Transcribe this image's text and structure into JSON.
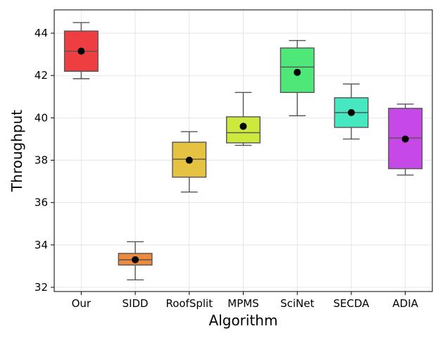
{
  "chart_data": {
    "type": "box",
    "title": "",
    "xlabel": "Algorithm",
    "ylabel": "Throughput",
    "ylim": [
      31.8,
      45.1
    ],
    "yticks": [
      32,
      34,
      36,
      38,
      40,
      42,
      44
    ],
    "grid": true,
    "categories": [
      "Our",
      "SIDD",
      "RoofSplit",
      "MPMS",
      "SciNet",
      "SECDA",
      "ADIA"
    ],
    "boxes": [
      {
        "name": "Our",
        "whisker_low": 41.85,
        "q1": 42.2,
        "median": 43.15,
        "q3": 44.1,
        "whisker_high": 44.5,
        "mean": 43.15,
        "color": "#ee3e42"
      },
      {
        "name": "SIDD",
        "whisker_low": 32.35,
        "q1": 33.05,
        "median": 33.3,
        "q3": 33.6,
        "whisker_high": 34.15,
        "mean": 33.3,
        "color": "#ec8a3e"
      },
      {
        "name": "RoofSplit",
        "whisker_low": 36.5,
        "q1": 37.2,
        "median": 38.05,
        "q3": 38.85,
        "whisker_high": 39.35,
        "mean": 38.0,
        "color": "#e5c242"
      },
      {
        "name": "MPMS",
        "whisker_low": 38.7,
        "q1": 38.82,
        "median": 39.3,
        "q3": 40.05,
        "whisker_high": 41.2,
        "mean": 39.6,
        "color": "#cde93e"
      },
      {
        "name": "SciNet",
        "whisker_low": 40.1,
        "q1": 41.2,
        "median": 42.4,
        "q3": 43.3,
        "whisker_high": 43.65,
        "mean": 42.15,
        "color": "#4de878"
      },
      {
        "name": "SECDA",
        "whisker_low": 39.0,
        "q1": 39.55,
        "median": 40.25,
        "q3": 40.95,
        "whisker_high": 41.6,
        "mean": 40.25,
        "color": "#46e8c2"
      },
      {
        "name": "ADIA",
        "whisker_low": 37.3,
        "q1": 37.6,
        "median": 39.05,
        "q3": 40.45,
        "whisker_high": 40.65,
        "mean": 39.0,
        "color": "#c548e7"
      }
    ]
  }
}
